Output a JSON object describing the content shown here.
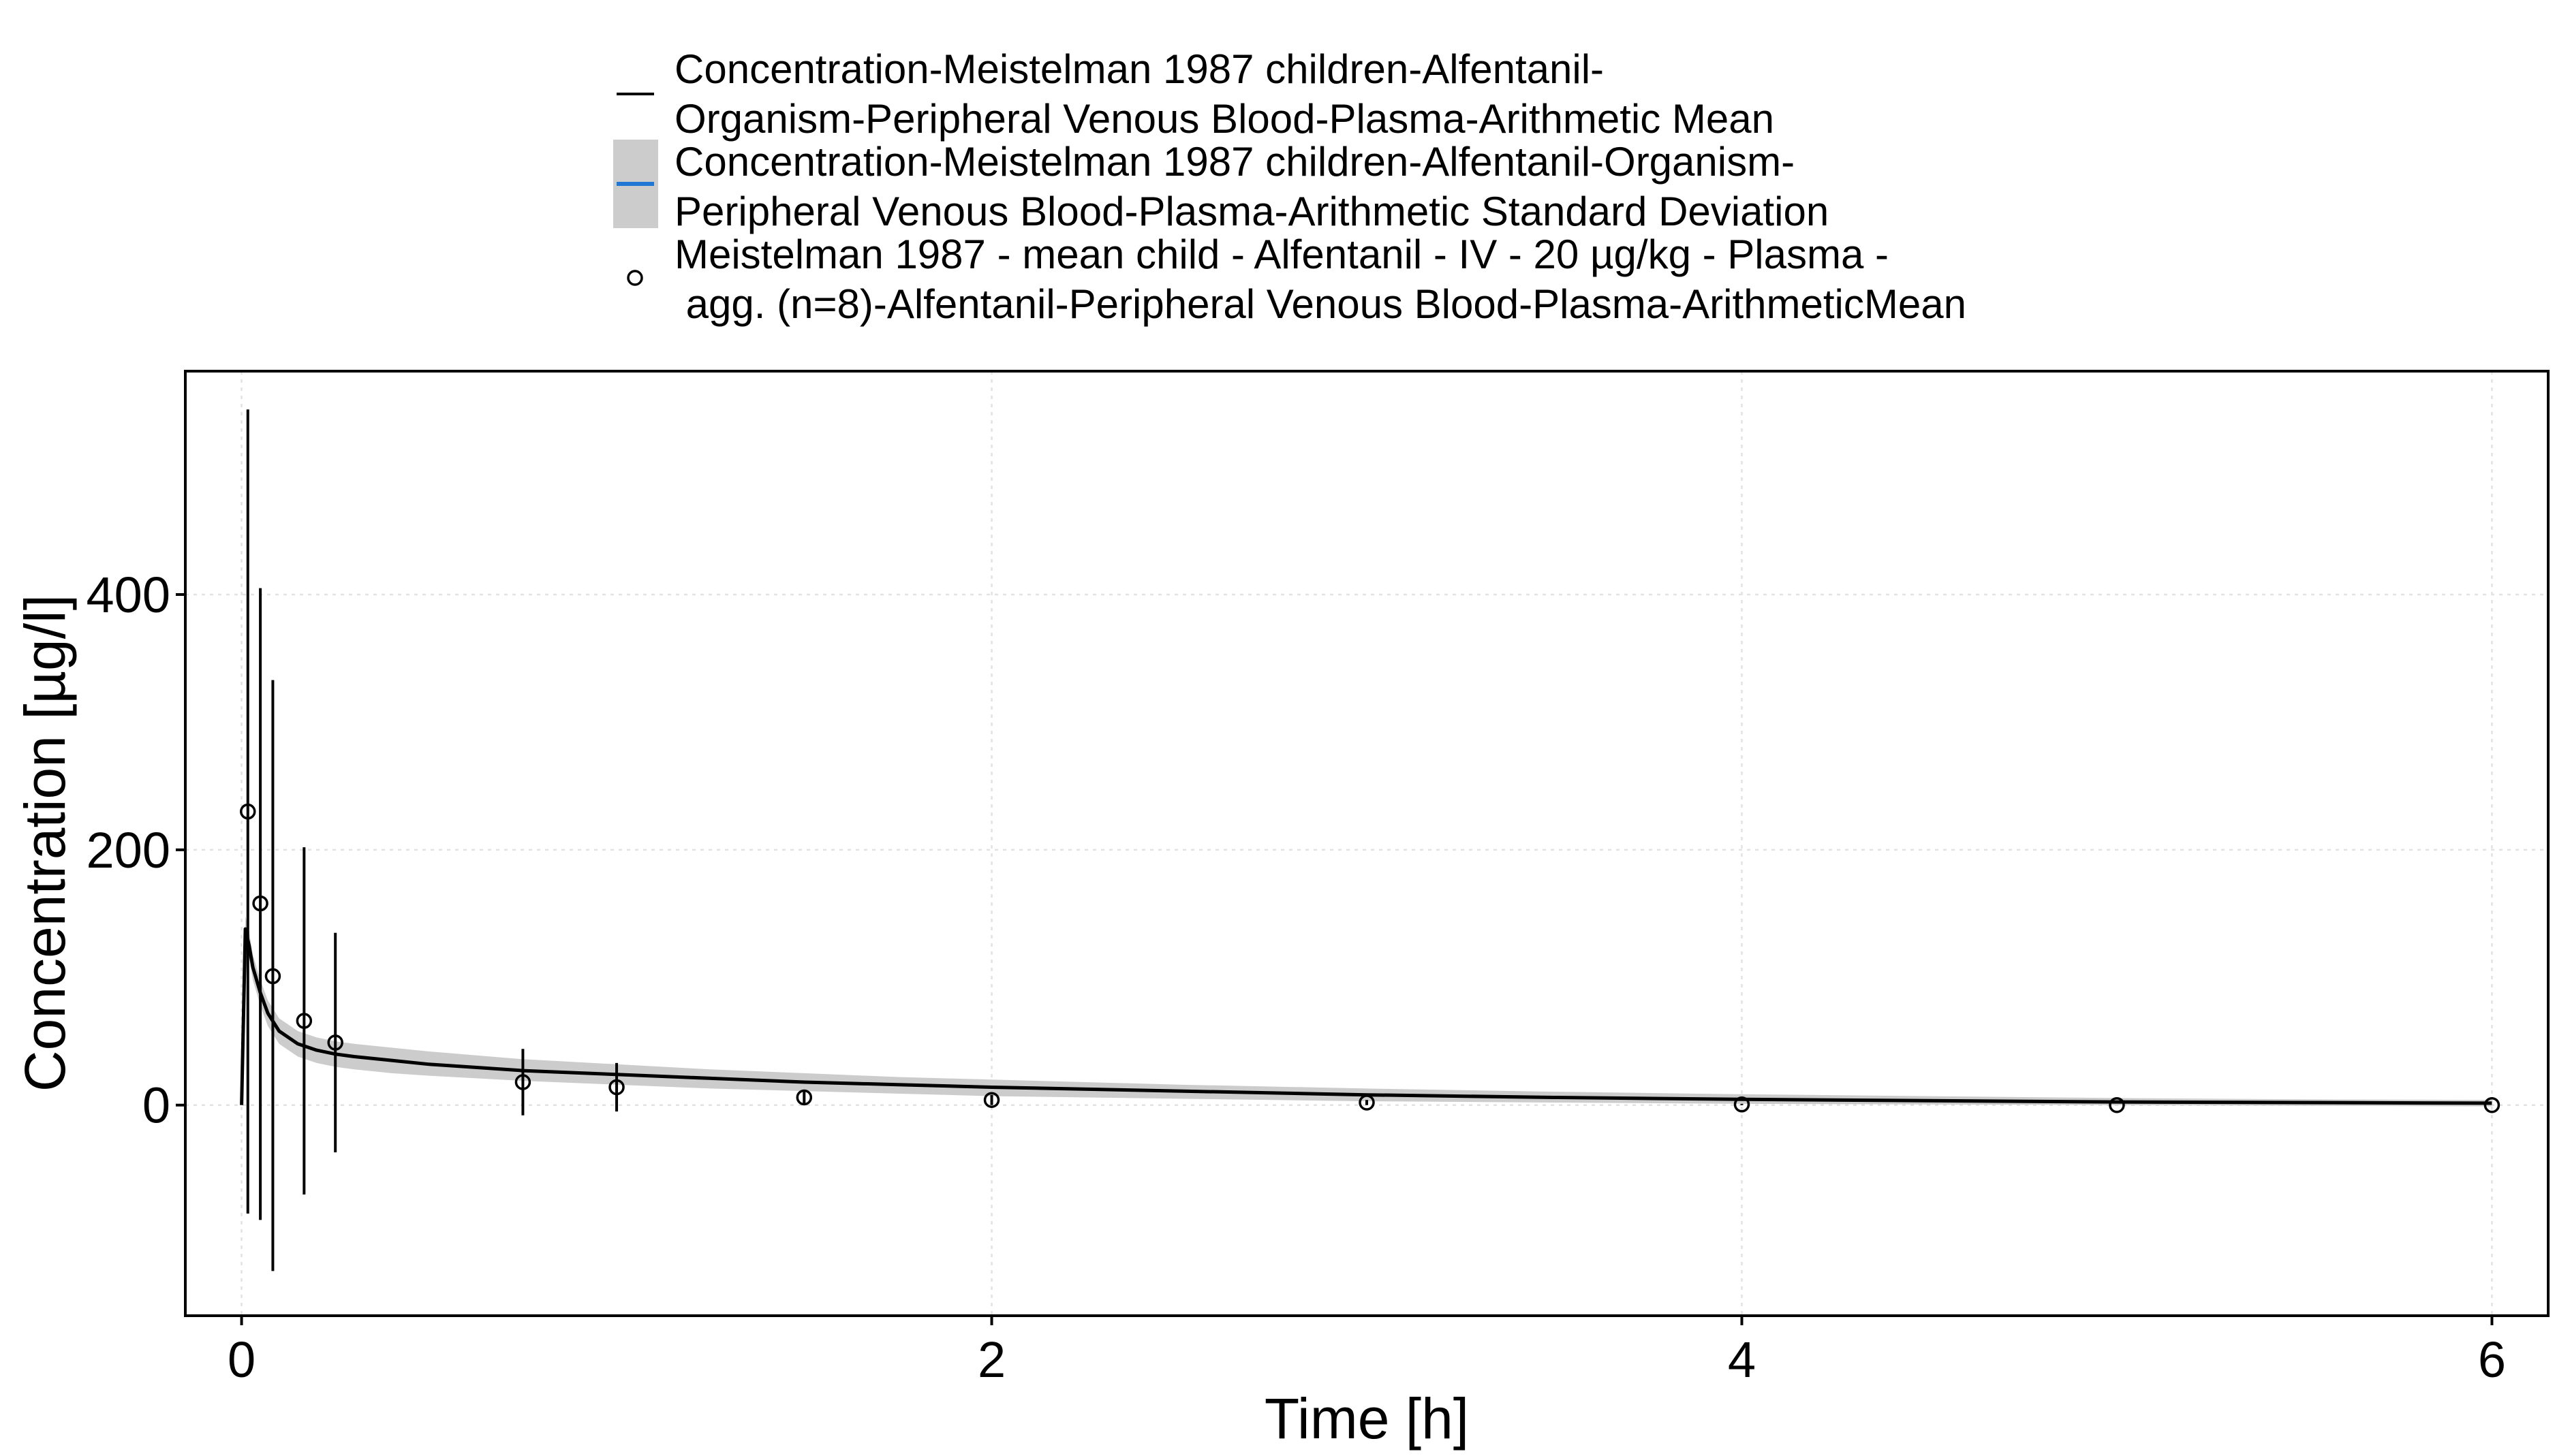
{
  "chart_data": {
    "type": "line",
    "title": "",
    "xlabel": "Time [h]",
    "ylabel": "Concentration [µg/l]",
    "xlim": [
      -0.15,
      6.15
    ],
    "ylim": [
      -165,
      575
    ],
    "xticks": [
      0,
      2,
      4,
      6
    ],
    "yticks": [
      0,
      200,
      400
    ],
    "xtick_labels": [
      "0",
      "2",
      "4",
      "6"
    ],
    "ytick_labels": [
      "0",
      "200",
      "400"
    ],
    "grid": true,
    "legend_position": "top",
    "colors": {
      "mean_line": "#000000",
      "sd_ribbon": "#cccccc",
      "sd_legend_line": "#1f78d4",
      "observed": "#000000",
      "grid": "#e2e2e2"
    },
    "legend": [
      {
        "key": "line",
        "lines": [
          "Concentration-Meistelman 1987 children-Alfentanil-",
          "Organism-Peripheral Venous Blood-Plasma-Arithmetic Mean"
        ]
      },
      {
        "key": "ribbon",
        "lines": [
          "Concentration-Meistelman 1987 children-Alfentanil-Organism-",
          "Peripheral Venous Blood-Plasma-Arithmetic Standard Deviation"
        ]
      },
      {
        "key": "point",
        "lines": [
          "Meistelman 1987 - mean child - Alfentanil - IV - 20 µg/kg - Plasma -",
          " agg. (n=8)-Alfentanil-Peripheral Venous Blood-Plasma-ArithmeticMean"
        ]
      }
    ],
    "series": [
      {
        "kind": "simulated_mean",
        "x": [
          0,
          0.01,
          0.02,
          0.03,
          0.05,
          0.07,
          0.1,
          0.15,
          0.2,
          0.25,
          0.3,
          0.4,
          0.5,
          0.75,
          1.0,
          1.25,
          1.5,
          1.75,
          2.0,
          2.5,
          3.0,
          3.5,
          4.0,
          4.5,
          5.0,
          5.5,
          6.0
        ],
        "y": [
          0,
          138,
          125,
          108,
          88,
          72,
          58,
          48,
          43,
          40,
          38,
          35,
          32,
          27,
          24,
          21,
          18,
          16,
          14,
          11,
          8,
          6,
          4.5,
          3.5,
          2.5,
          2,
          1.5
        ],
        "sd_lower": [
          0,
          128,
          115,
          98,
          78,
          62,
          48,
          38,
          33,
          30,
          28,
          25,
          23,
          19,
          16,
          13,
          11,
          9,
          7,
          5,
          3,
          2,
          1,
          0.5,
          0,
          -0.5,
          -1
        ],
        "sd_upper": [
          0,
          148,
          136,
          118,
          98,
          82,
          68,
          58,
          53,
          50,
          48,
          45,
          42,
          36,
          32,
          28,
          25,
          22,
          20,
          16,
          13,
          10.5,
          8.5,
          7,
          5.5,
          4.5,
          4
        ]
      },
      {
        "kind": "observed",
        "x": [
          0.0167,
          0.05,
          0.0833,
          0.1667,
          0.25,
          0.75,
          1.0,
          1.5,
          2.0,
          3.0,
          4.0,
          5.0,
          6.0
        ],
        "y": [
          230,
          158,
          101,
          66,
          49,
          18,
          14,
          6,
          4,
          2,
          0.5,
          0,
          0
        ],
        "err_lower": [
          -85,
          -90,
          -130,
          -70,
          -37,
          -8,
          -5,
          0,
          0,
          0,
          0,
          0,
          0
        ],
        "err_upper": [
          545,
          405,
          333,
          202,
          135,
          44,
          33,
          12,
          8,
          4,
          1,
          0,
          0
        ]
      }
    ]
  }
}
